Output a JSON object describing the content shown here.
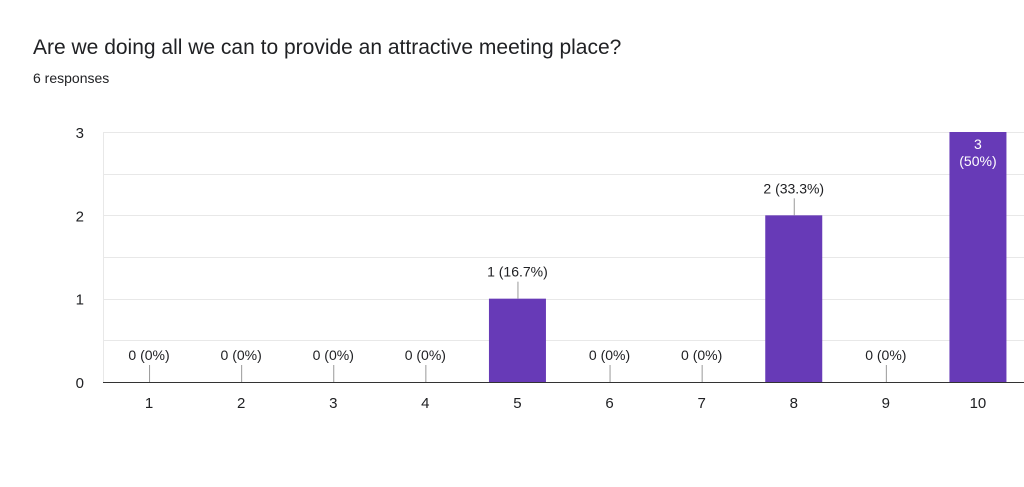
{
  "question": {
    "title": "Are we doing all we can to provide an attractive meeting place?",
    "responses_label": "6 responses"
  },
  "colors": {
    "bar": "#673ab7",
    "grid": "#e8e8e8",
    "axis": "#333333",
    "label": "#202124",
    "label_inside": "#ffffff",
    "leader": "#999999"
  },
  "chart_data": {
    "type": "bar",
    "categories": [
      "1",
      "2",
      "3",
      "4",
      "5",
      "6",
      "7",
      "8",
      "9",
      "10"
    ],
    "values": [
      0,
      0,
      0,
      0,
      1,
      0,
      0,
      2,
      0,
      3
    ],
    "data_labels": [
      "0 (0%)",
      "0 (0%)",
      "0 (0%)",
      "0 (0%)",
      "1 (16.7%)",
      "0 (0%)",
      "0 (0%)",
      "2 (33.3%)",
      "0 (0%)",
      "3 (50%)"
    ],
    "y_ticks": [
      0,
      1,
      2,
      3
    ],
    "ylim": [
      0,
      3
    ],
    "grid": true,
    "xlabel": "",
    "ylabel": ""
  }
}
